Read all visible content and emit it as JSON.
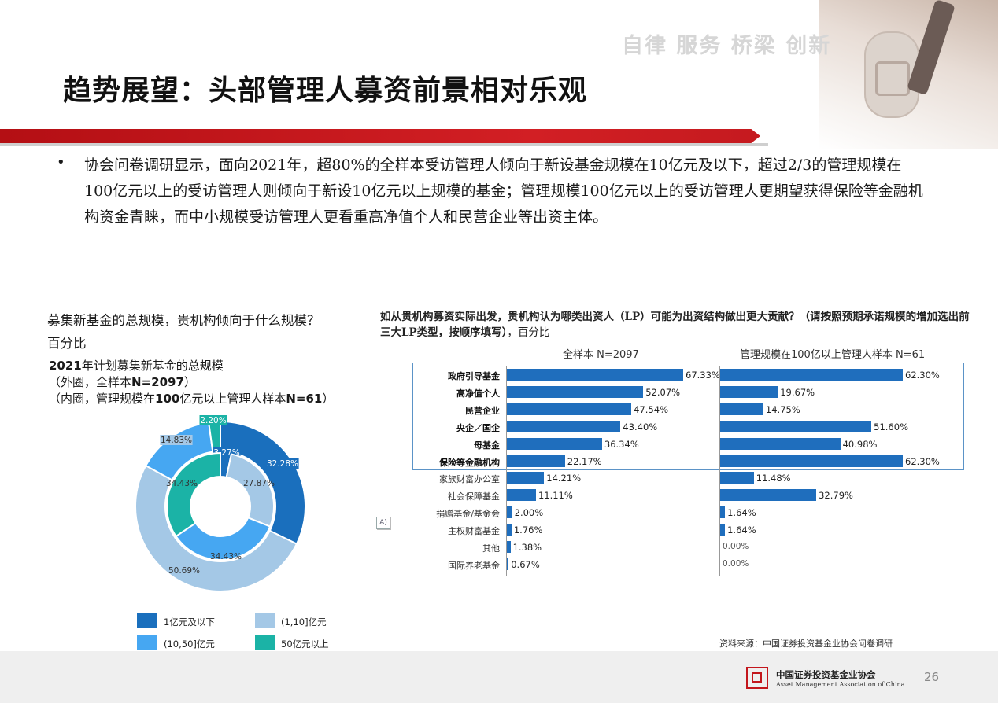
{
  "header": {
    "slogan": "自律  服务  桥梁  创新",
    "title": "趋势展望：头部管理人募资前景相对乐观"
  },
  "bullet": {
    "marker": "•",
    "text": "协会问卷调研显示，面向2021年，超80%的全样本受访管理人倾向于新设基金规模在10亿元及以下，超过2/3的管理规模在100亿元以上的受访管理人则倾向于新设10亿元以上规模的基金；管理规模100亿元以上的受访管理人更期望获得保险等金融机构资金青睐，而中小规模受访管理人更看重高净值个人和民营企业等出资主体。"
  },
  "left_chart": {
    "question": "募集新基金的总规模，贵机构倾向于什么规模？",
    "unit": "百分比",
    "subtitle_year": "2021",
    "subtitle_rest": "年计划募集新基金的总规模",
    "outer_note_pre": "（外圈，全样本",
    "outer_note_bold": "N=2097",
    "outer_note_post": "）",
    "inner_note_pre": "（内圈，管理规模在",
    "inner_note_bold1": "100",
    "inner_note_mid": "亿元以上管理人样本",
    "inner_note_bold2": "N=61",
    "inner_note_post": "）",
    "legend": [
      {
        "label": "1亿元及以下",
        "color": "#1a6fbd"
      },
      {
        "label": "(1,10]亿元",
        "color": "#a4c8e6"
      },
      {
        "label": "(10,50]亿元",
        "color": "#46a7f2"
      },
      {
        "label": "50亿元以上",
        "color": "#1bb3a6"
      }
    ]
  },
  "right_chart": {
    "question": "如从贵机构募资实际出发，贵机构认为哪类出资人（LP）可能为出资结构做出更大贡献？（请按照预期承诺规模的增加选出前三大LP类型，按顺序填写）",
    "unit": "，百分比",
    "panel1_title": "全样本 N=2097",
    "panel2_title": "管理规模在100亿以上管理人样本 N=61",
    "side_tag": "A)",
    "source": "资料来源：中国证券投资基金业协会问卷调研"
  },
  "chart_data": [
    {
      "type": "pie",
      "subtype": "donut-outer",
      "categories": [
        "1亿元及以下",
        "(1,10]亿元",
        "(10,50]亿元",
        "50亿元以上"
      ],
      "values": [
        32.28,
        50.69,
        14.83,
        2.2
      ],
      "labels": [
        "32.28%",
        "50.69%",
        "14.83%",
        "2.20%"
      ],
      "colors": [
        "#1a6fbd",
        "#a4c8e6",
        "#46a7f2",
        "#1bb3a6"
      ]
    },
    {
      "type": "pie",
      "subtype": "donut-inner",
      "categories": [
        "1亿元及以下",
        "(1,10]亿元",
        "(10,50]亿元",
        "50亿元以上"
      ],
      "values": [
        3.27,
        27.87,
        34.43,
        34.43
      ],
      "labels": [
        "3.27%",
        "27.87%",
        "34.43%",
        "34.43%"
      ],
      "colors": [
        "#1a6fbd",
        "#a4c8e6",
        "#46a7f2",
        "#1bb3a6"
      ]
    },
    {
      "type": "bar",
      "orientation": "horizontal",
      "title": "全样本 N=2097",
      "categories": [
        "政府引导基金",
        "高净值个人",
        "民营企业",
        "央企／国企",
        "母基金",
        "保险等金融机构",
        "家族财富办公室",
        "社会保障基金",
        "捐赠基金/基金会",
        "主权财富基金",
        "其他",
        "国际养老基金"
      ],
      "highlighted": [
        true,
        true,
        true,
        true,
        true,
        true,
        false,
        false,
        false,
        false,
        false,
        false
      ],
      "values": [
        67.33,
        52.07,
        47.54,
        43.4,
        36.34,
        22.17,
        14.21,
        11.11,
        2.0,
        1.76,
        1.38,
        0.67
      ],
      "labels": [
        "67.33%",
        "52.07%",
        "47.54%",
        "43.40%",
        "36.34%",
        "22.17%",
        "14.21%",
        "11.11%",
        "2.00%",
        "1.76%",
        "1.38%",
        "0.67%"
      ]
    },
    {
      "type": "bar",
      "orientation": "horizontal",
      "title": "管理规模在100亿以上管理人样本 N=61",
      "categories": [
        "政府引导基金",
        "高净值个人",
        "民营企业",
        "央企／国企",
        "母基金",
        "保险等金融机构",
        "家族财富办公室",
        "社会保障基金",
        "捐赠基金/基金会",
        "主权财富基金",
        "其他",
        "国际养老基金"
      ],
      "values": [
        62.3,
        19.67,
        14.75,
        51.6,
        40.98,
        62.3,
        11.48,
        32.79,
        1.64,
        1.64,
        0.0,
        0.0
      ],
      "labels": [
        "62.30%",
        "19.67%",
        "14.75%",
        "51.60%",
        "40.98%",
        "62.30%",
        "11.48%",
        "32.79%",
        "1.64%",
        "1.64%",
        "0.00%",
        "0.00%"
      ]
    }
  ],
  "footer": {
    "org_cn": "中国证券投资基金业协会",
    "org_en": "Asset Management Association of China",
    "page": "26"
  }
}
